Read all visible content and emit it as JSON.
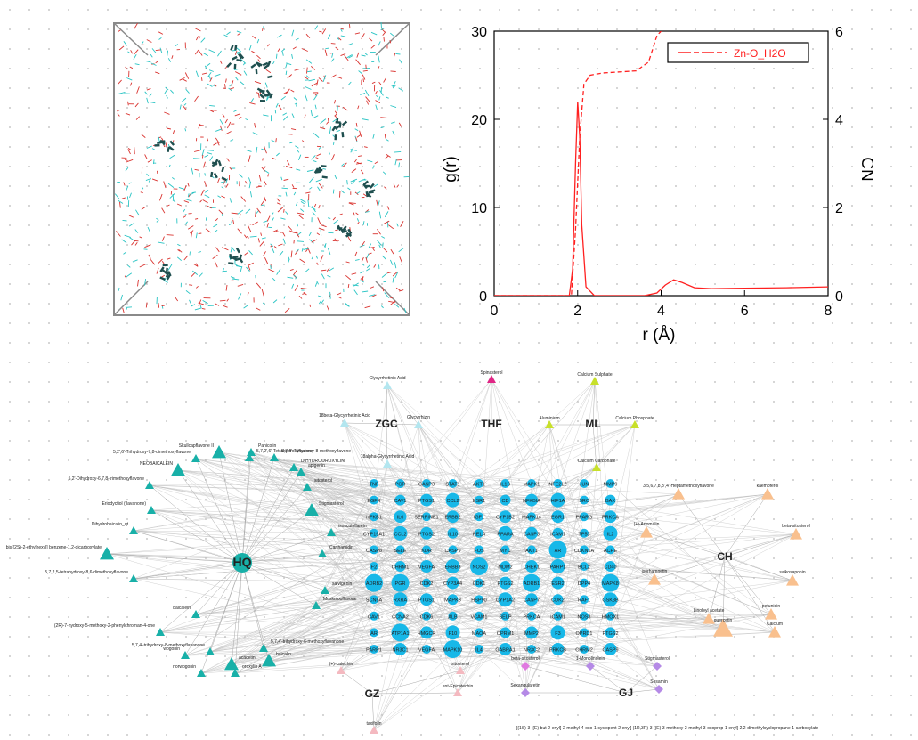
{
  "gr_plot": {
    "xlabel": "r (Å)",
    "ylabel_left": "g(r)",
    "ylabel_right": "CN",
    "legend": "Zn-O_H2O",
    "color": "#ff2020"
  },
  "chart_data": {
    "type": "line",
    "title": "",
    "xlabel": "r (Å)",
    "ylabel": "g(r)",
    "y2label": "CN",
    "xlim": [
      0,
      8
    ],
    "ylim": [
      0,
      30
    ],
    "y2lim": [
      0,
      6
    ],
    "xticks": [
      0,
      2,
      4,
      6,
      8
    ],
    "yticks": [
      0,
      10,
      20,
      30
    ],
    "y2ticks": [
      0,
      2,
      4,
      6
    ],
    "legend_position": "top-right",
    "grid": false,
    "series": [
      {
        "name": "Zn-O_H2O",
        "axis": "left",
        "style": "solid",
        "x": [
          0,
          1.8,
          1.88,
          1.95,
          2.0,
          2.05,
          2.1,
          2.2,
          2.4,
          3.0,
          3.6,
          3.9,
          4.1,
          4.3,
          4.5,
          4.8,
          5.2,
          6.0,
          7.0,
          8.0
        ],
        "y": [
          0,
          0,
          3,
          15,
          22,
          18,
          8,
          1,
          0,
          0,
          0,
          0.3,
          1.2,
          1.8,
          1.5,
          0.9,
          0.8,
          0.85,
          0.9,
          1.0
        ]
      },
      {
        "name": "Zn-O_H2O CN",
        "axis": "right",
        "style": "dashed",
        "x": [
          0,
          1.85,
          1.95,
          2.05,
          2.15,
          2.3,
          2.6,
          3.4,
          3.7,
          3.8,
          3.9,
          4.0
        ],
        "y": [
          0,
          0,
          1.5,
          3.6,
          4.8,
          5.0,
          5.05,
          5.1,
          5.3,
          5.6,
          5.9,
          6.0
        ]
      }
    ]
  },
  "network": {
    "hubs": [
      "HQ",
      "ZGC",
      "THF",
      "ML",
      "CH",
      "GZ",
      "GJ"
    ],
    "targets": [
      [
        "TNF",
        "PGR",
        "CASP3",
        "STAT1",
        "AKT1",
        "IL1B",
        "MAPK1",
        "NFE2L2",
        "JUN",
        "MMP9"
      ],
      [
        "EGFR",
        "CAV1",
        "PTGS1",
        "CCL2",
        "ESR1",
        "CD",
        "NFKBIA",
        "HIF1A",
        "SRC",
        "BAX"
      ],
      [
        "NFKB1",
        "IL6",
        "SERPINE1",
        "ERBB2",
        "IGF1",
        "CYP1B2",
        "MAPK14",
        "EGR1",
        "PPARG",
        "PRKCA"
      ],
      [
        "CYP19A1",
        "CCL2",
        "PTGS2",
        "IL10",
        "RELA",
        "PPARA",
        "CASP3",
        "ICAM1",
        "TP53",
        "IL2"
      ],
      [
        "CASP8",
        "SELE",
        "KDR",
        "CASP9",
        "FOS",
        "MYC",
        "AKT1",
        "AR",
        "CDKN1A",
        "ACHE"
      ],
      [
        "F2",
        "CHRM1",
        "VEGFA",
        "ERBB3",
        "NOS2",
        "MDM2",
        "CHEK1",
        "PARP1",
        "BCL2",
        "CD40"
      ],
      [
        "ADRB2",
        "PGR",
        "CDK2",
        "CYP3A4",
        "CDK1",
        "PTGS2",
        "ADRB1",
        "ESR2",
        "DPP4",
        "MAPK8"
      ],
      [
        "SCN5A",
        "RXRA",
        "PTGS1",
        "MAPK3",
        "HSP90",
        "CYP1A2",
        "CASP7",
        "CDK2",
        "RAF1",
        "GSK3B"
      ],
      [
        "CAV1",
        "CCNA2",
        "CDK6",
        "ALB",
        "VCAM1",
        "SELP",
        "PRKCA",
        "ICAM1",
        "NOS3",
        "HMOX1"
      ],
      [
        "AR",
        "ATP1A1",
        "HMGCR",
        "F10",
        "MAOA",
        "OPRM1",
        "MMP2",
        "F3",
        "OPRD1",
        "PTGS2"
      ],
      [
        "PARP1",
        "NR3C1",
        "VEGFA",
        "MAPK10",
        "IL4",
        "GABRA1",
        "NR3C2",
        "PRKCB",
        "CHRM2",
        "CASP9"
      ]
    ],
    "teal_compounds": [
      "Skullcapflavone II",
      "Panicolin",
      "5,7,4'-Trihydroxy-8-methoxyflavone",
      "5,7,2',6'-Tetrahydroxyflavone",
      "5,2',6'-Trihydroxy-7,8-dimethoxyflavone",
      "NEOBAICALEIN",
      "5,2'-Dihydroxy-6,7,8-trimethoxyflavone",
      "DIHYDROOROXYLIN",
      "Eriodyctiol (flavanone)",
      "Dihydrobaicalin_qt",
      "bis[(2S)-2-ethylhexyl] benzene-1,2-dicarboxylate",
      "5,7,2,5-tetrahydroxy-8,6-dimethoxyflavone",
      "baicalein",
      "(2R)-7-hydroxy-5-methoxy-2-phenylchroman-4-one",
      "5,7,4'-trihydroxy-8-methoxyflavanone",
      "acacetin",
      "5,7,4'-trihydroxy-6-methoxyflavanone",
      "wogonin",
      "oroxylin A",
      "norwogonin",
      "baicalin",
      "Moslosooflavone",
      "salvigenin",
      "Carthamidin",
      "isoscutellarein",
      "Stigmasterol",
      "sitosterol",
      "apigenin"
    ],
    "zgc_compounds": [
      "Glycyrrhetinic Acid",
      "18beta-Glycyrrhetinic Acid",
      "Glycyrrhizin",
      "18alpha-Glycyrrhetinic Acid"
    ],
    "thf_compounds": [
      "Spinasterol"
    ],
    "ml_compounds": [
      "Calcium Sulphate",
      "Aluminium",
      "Calcium Phosphate",
      "Calcium Carbonate"
    ],
    "ch_compounds": [
      "3,5,6,7,8,3',4'-Heptamethoxyflavone",
      "kaempferol",
      "(+)-Anomalin",
      "beta-sitosterol",
      "isorhamnetin",
      "saikosaponin",
      "Linoleyl acetate",
      "petunidin",
      "quercetin",
      "Calcium"
    ],
    "gz_compounds": [
      "(+)-catechin",
      "sitosterol",
      "ent-Epicatechin",
      "taxifolin"
    ],
    "gj_compounds": [
      "beta-sitosterol",
      "1-Monolinolein",
      "Stigmasterol",
      "Sesamin",
      "Sexangularetin"
    ],
    "long_label": "[(1S)-3-[(E)-but-2-enyl]-2-methyl-4-oxo-1-cyclopent-2-enyl] (1R,3R)-3-[(E)-3-methoxy-2-methyl-3-oxoprop-1-enyl]-2,2-dimethylcyclopropane-1-carboxylate"
  }
}
